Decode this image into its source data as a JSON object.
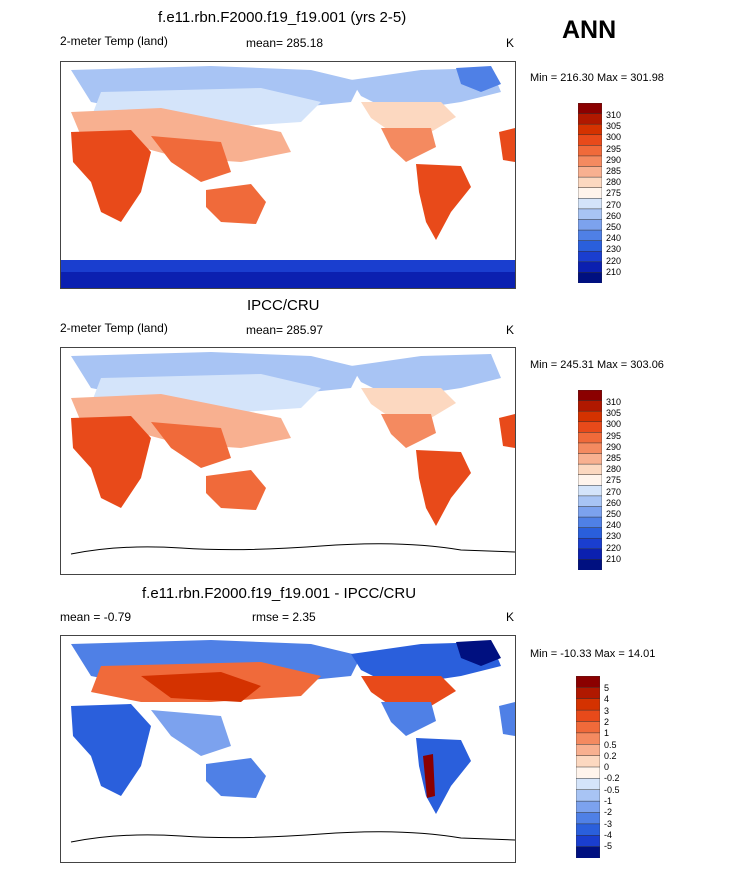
{
  "season": "ANN",
  "panels": [
    {
      "id": "model",
      "title": "f.e11.rbn.F2000.f19_f19.001 (yrs 2-5)",
      "variable": "2-meter Temp (land)",
      "stat": "mean= 285.18",
      "units": "K",
      "minmax": "Min = 216.30 Max = 301.98",
      "colorbar_labels": [
        "310",
        "305",
        "300",
        "295",
        "290",
        "285",
        "280",
        "275",
        "270",
        "260",
        "250",
        "240",
        "230",
        "220",
        "210"
      ]
    },
    {
      "id": "obs",
      "title": "IPCC/CRU",
      "variable": "2-meter Temp (land)",
      "stat": "mean= 285.97",
      "units": "K",
      "minmax": "Min = 245.31 Max = 303.06",
      "colorbar_labels": [
        "310",
        "305",
        "300",
        "295",
        "290",
        "285",
        "280",
        "275",
        "270",
        "260",
        "250",
        "240",
        "230",
        "220",
        "210"
      ]
    },
    {
      "id": "diff",
      "title": "f.e11.rbn.F2000.f19_f19.001 - IPCC/CRU",
      "variable": "mean =  -0.79",
      "stat": "rmse =   2.35",
      "units": "K",
      "minmax": "Min = -10.33 Max =  14.01",
      "colorbar_labels": [
        "5",
        "4",
        "3",
        "2",
        "1",
        "0.5",
        "0.2",
        "0",
        "-0.2",
        "-0.5",
        "-1",
        "-2",
        "-3",
        "-4",
        "-5"
      ]
    }
  ],
  "colors": {
    "abs_scale": [
      "#8b0000",
      "#b01800",
      "#d43200",
      "#e84a1a",
      "#f06a3a",
      "#f48a60",
      "#f8b090",
      "#fcd8c0",
      "#fff4ec",
      "#d4e4fa",
      "#a8c4f4",
      "#7ca2ee",
      "#4f80e6",
      "#2a5fdc",
      "#1a3ecf",
      "#0b20b0",
      "#001080"
    ],
    "diff_scale": [
      "#8b0000",
      "#b01800",
      "#d43200",
      "#e84a1a",
      "#f06a3a",
      "#f48a60",
      "#f8b090",
      "#fcd8c0",
      "#fff4ec",
      "#d4e4fa",
      "#a8c4f4",
      "#7ca2ee",
      "#4f80e6",
      "#2a5fdc",
      "#1a3ecf",
      "#001080"
    ]
  },
  "chart_data": [
    {
      "type": "heatmap",
      "title": "f.e11.rbn.F2000.f19_f19.001 (yrs 2-5)",
      "variable": "2-meter Temp (land)",
      "units": "K",
      "mean": 285.18,
      "min": 216.3,
      "max": 301.98,
      "levels": [
        210,
        220,
        230,
        240,
        250,
        260,
        270,
        275,
        280,
        285,
        290,
        295,
        300,
        305,
        310
      ]
    },
    {
      "type": "heatmap",
      "title": "IPCC/CRU",
      "variable": "2-meter Temp (land)",
      "units": "K",
      "mean": 285.97,
      "min": 245.31,
      "max": 303.06,
      "levels": [
        210,
        220,
        230,
        240,
        250,
        260,
        270,
        275,
        280,
        285,
        290,
        295,
        300,
        305,
        310
      ]
    },
    {
      "type": "heatmap",
      "title": "f.e11.rbn.F2000.f19_f19.001 - IPCC/CRU",
      "units": "K",
      "mean": -0.79,
      "rmse": 2.35,
      "min": -10.33,
      "max": 14.01,
      "levels": [
        -5,
        -4,
        -3,
        -2,
        -1,
        -0.5,
        -0.2,
        0,
        0.2,
        0.5,
        1,
        2,
        3,
        4,
        5
      ]
    }
  ]
}
